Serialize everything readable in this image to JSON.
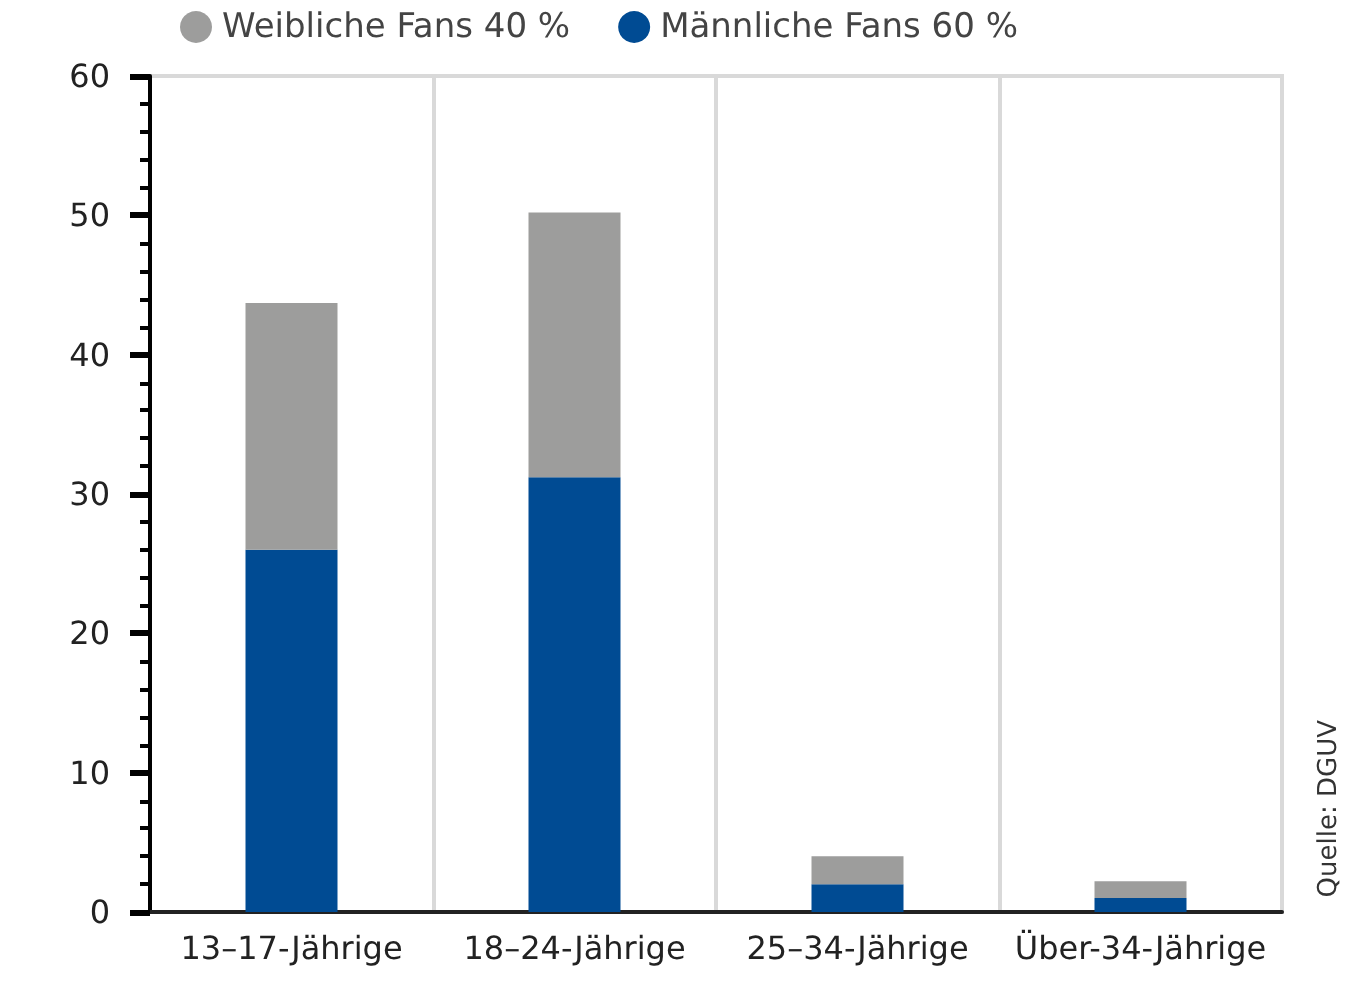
{
  "chart_data": {
    "type": "bar",
    "stacked": true,
    "categories": [
      "13–17-Jährige",
      "18–24-Jährige",
      "25–34-Jährige",
      "Über-34-Jährige"
    ],
    "series": [
      {
        "name": "Männliche Fans 60 %",
        "color": "#004b93",
        "values": [
          26,
          31.2,
          2,
          1
        ]
      },
      {
        "name": "Weibliche Fans 40 %",
        "color": "#9d9d9c",
        "values": [
          17.7,
          19,
          2,
          1.2
        ]
      }
    ],
    "ylim": [
      0,
      60
    ],
    "yticks": [
      0,
      10,
      20,
      30,
      40,
      50,
      60
    ],
    "grid": "x",
    "legend": "top left",
    "annotations": [
      "Quelle: DGUV"
    ]
  }
}
